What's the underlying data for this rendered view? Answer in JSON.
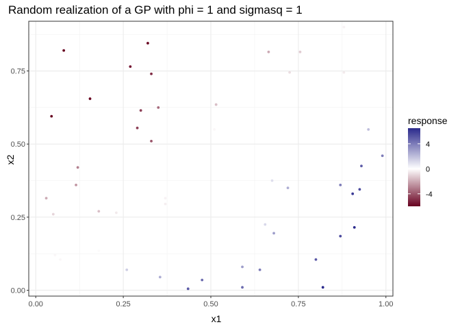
{
  "chart_data": {
    "type": "scatter",
    "title": "Random realization of a GP with phi = 1 and sigmasq = 1",
    "xlabel": "x1",
    "ylabel": "x2",
    "xlim": [
      -0.02,
      1.02
    ],
    "ylim": [
      -0.02,
      0.92
    ],
    "xticks": [
      0.0,
      0.25,
      0.5,
      0.75,
      1.0
    ],
    "xtick_labels": [
      "0.00",
      "0.25",
      "0.50",
      "0.75",
      "1.00"
    ],
    "yticks": [
      0.0,
      0.25,
      0.5,
      0.75
    ],
    "ytick_labels": [
      "0.00",
      "0.25",
      "0.50",
      "0.75"
    ],
    "grid": true,
    "legend": {
      "title": "response",
      "placement": "right",
      "range": [
        -6,
        6.5
      ],
      "ticks": [
        4,
        0,
        -4
      ],
      "tick_labels": [
        "4",
        "0",
        "-4"
      ],
      "colors": {
        "low": "#67001f",
        "mid": "#ffffff",
        "high": "#2b2a8c"
      }
    },
    "points": [
      {
        "x": 0.08,
        "y": 0.82,
        "response": -6.0
      },
      {
        "x": 0.32,
        "y": 0.845,
        "response": -6.0
      },
      {
        "x": 0.27,
        "y": 0.765,
        "response": -5.5
      },
      {
        "x": 0.33,
        "y": 0.74,
        "response": -5.0
      },
      {
        "x": 0.155,
        "y": 0.655,
        "response": -6.0
      },
      {
        "x": 0.045,
        "y": 0.595,
        "response": -6.0
      },
      {
        "x": 0.3,
        "y": 0.615,
        "response": -4.5
      },
      {
        "x": 0.35,
        "y": 0.625,
        "response": -3.5
      },
      {
        "x": 0.29,
        "y": 0.555,
        "response": -4.5
      },
      {
        "x": 0.33,
        "y": 0.51,
        "response": -4.0
      },
      {
        "x": 0.12,
        "y": 0.42,
        "response": -3.0
      },
      {
        "x": 0.115,
        "y": 0.36,
        "response": -2.5
      },
      {
        "x": 0.03,
        "y": 0.315,
        "response": -2.0
      },
      {
        "x": 0.18,
        "y": 0.27,
        "response": -1.5
      },
      {
        "x": 0.05,
        "y": 0.26,
        "response": -1.0
      },
      {
        "x": 0.23,
        "y": 0.265,
        "response": -0.5
      },
      {
        "x": 0.37,
        "y": 0.315,
        "response": -0.3
      },
      {
        "x": 0.37,
        "y": 0.295,
        "response": -0.4
      },
      {
        "x": 0.055,
        "y": 0.12,
        "response": -0.2
      },
      {
        "x": 0.07,
        "y": 0.105,
        "response": -0.2
      },
      {
        "x": 0.18,
        "y": 0.135,
        "response": -0.1
      },
      {
        "x": 0.515,
        "y": 0.635,
        "response": -1.5
      },
      {
        "x": 0.51,
        "y": 0.55,
        "response": -0.2
      },
      {
        "x": 0.665,
        "y": 0.815,
        "response": -2.0
      },
      {
        "x": 0.755,
        "y": 0.815,
        "response": -1.2
      },
      {
        "x": 0.725,
        "y": 0.745,
        "response": -0.8
      },
      {
        "x": 0.88,
        "y": 0.9,
        "response": -0.3
      },
      {
        "x": 0.88,
        "y": 0.745,
        "response": -0.5
      },
      {
        "x": 0.95,
        "y": 0.55,
        "response": 2.0
      },
      {
        "x": 0.99,
        "y": 0.46,
        "response": 4.0
      },
      {
        "x": 0.93,
        "y": 0.425,
        "response": 5.0
      },
      {
        "x": 0.675,
        "y": 0.375,
        "response": 1.0
      },
      {
        "x": 0.72,
        "y": 0.35,
        "response": 2.5
      },
      {
        "x": 0.87,
        "y": 0.36,
        "response": 4.0
      },
      {
        "x": 0.925,
        "y": 0.345,
        "response": 5.5
      },
      {
        "x": 0.905,
        "y": 0.33,
        "response": 6.0
      },
      {
        "x": 0.655,
        "y": 0.225,
        "response": 1.2
      },
      {
        "x": 0.68,
        "y": 0.195,
        "response": 3.0
      },
      {
        "x": 0.91,
        "y": 0.215,
        "response": 6.5
      },
      {
        "x": 0.87,
        "y": 0.185,
        "response": 5.5
      },
      {
        "x": 0.8,
        "y": 0.105,
        "response": 5.0
      },
      {
        "x": 0.59,
        "y": 0.08,
        "response": 3.0
      },
      {
        "x": 0.64,
        "y": 0.07,
        "response": 4.0
      },
      {
        "x": 0.26,
        "y": 0.07,
        "response": 1.5
      },
      {
        "x": 0.355,
        "y": 0.045,
        "response": 2.5
      },
      {
        "x": 0.475,
        "y": 0.035,
        "response": 4.5
      },
      {
        "x": 0.435,
        "y": 0.005,
        "response": 5.0
      },
      {
        "x": 0.59,
        "y": 0.01,
        "response": 4.5
      },
      {
        "x": 0.82,
        "y": 0.01,
        "response": 6.5
      }
    ]
  }
}
